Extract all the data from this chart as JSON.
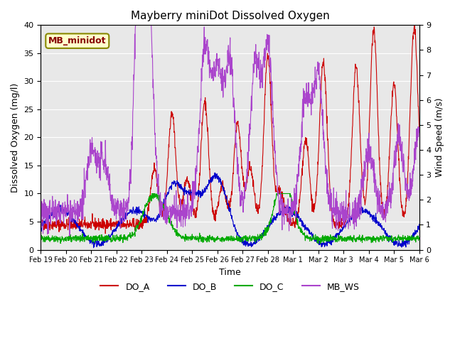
{
  "title": "Mayberry miniDot Dissolved Oxygen",
  "xlabel": "Time",
  "ylabel_left": "Dissolved Oxygen (mg/l)",
  "ylabel_right": "Wind Speed (m/s)",
  "ylim_left": [
    0,
    40
  ],
  "ylim_right": [
    0.0,
    9.0
  ],
  "yticks_left": [
    0,
    5,
    10,
    15,
    20,
    25,
    30,
    35,
    40
  ],
  "yticks_right": [
    0.0,
    1.0,
    2.0,
    3.0,
    4.0,
    5.0,
    6.0,
    7.0,
    8.0,
    9.0
  ],
  "colors": {
    "DO_A": "#cc0000",
    "DO_B": "#0000cc",
    "DO_C": "#00aa00",
    "MB_WS": "#aa44cc"
  },
  "legend_label": "MB_minidot",
  "legend_box_color": "#ffffcc",
  "legend_box_edge": "#888800",
  "bg_color": "#e8e8e8",
  "xticklabels": [
    "Feb 19",
    "Feb 20",
    "Feb 21",
    "Feb 22",
    "Feb 23",
    "Feb 24",
    "Feb 25",
    "Feb 26",
    "Feb 27",
    "Feb 28",
    "Mar 1",
    "Mar 2",
    "Mar 3",
    "Mar 4",
    "Mar 5",
    "Mar 6"
  ]
}
